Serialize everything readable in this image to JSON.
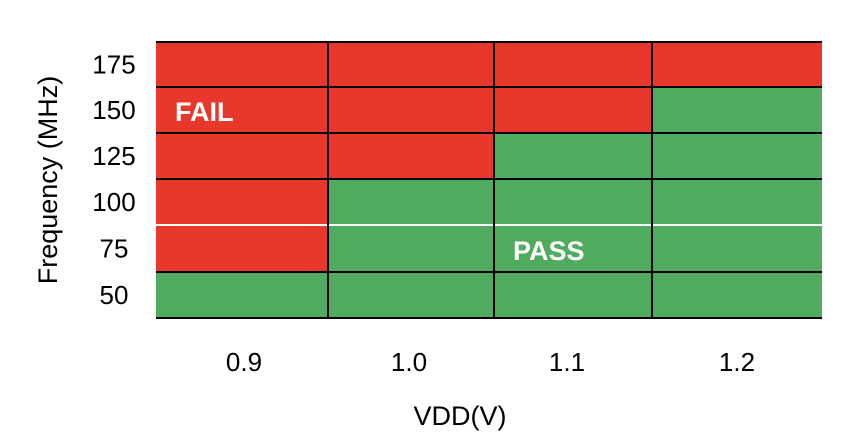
{
  "chart_data": {
    "type": "heatmap",
    "xlabel": "VDD(V)",
    "ylabel": "Frequency (MHz)",
    "x": [
      "0.9",
      "1.0",
      "1.1",
      "1.2"
    ],
    "y": [
      "175",
      "150",
      "125",
      "100",
      "75",
      "50"
    ],
    "values": [
      [
        "FAIL",
        "FAIL",
        "FAIL",
        "FAIL"
      ],
      [
        "FAIL",
        "FAIL",
        "FAIL",
        "PASS"
      ],
      [
        "FAIL",
        "FAIL",
        "PASS",
        "PASS"
      ],
      [
        "FAIL",
        "PASS",
        "PASS",
        "PASS"
      ],
      [
        "FAIL",
        "PASS",
        "PASS",
        "PASS"
      ],
      [
        "PASS",
        "PASS",
        "PASS",
        "PASS"
      ]
    ],
    "region_labels": {
      "fail": "FAIL",
      "pass": "PASS"
    },
    "colors": {
      "FAIL": "#e8382b",
      "PASS": "#4fab5e",
      "grid": "#000000",
      "row_separator": "#ffffff"
    }
  }
}
